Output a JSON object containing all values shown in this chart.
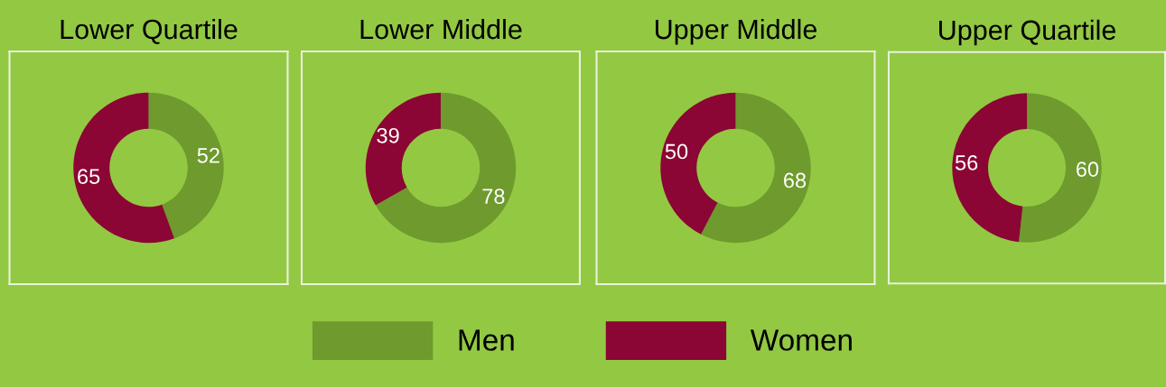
{
  "chart_data": [
    {
      "type": "donut",
      "title": "Lower Quartile",
      "categories": [
        "Men",
        "Women"
      ],
      "values": [
        52,
        65
      ],
      "colors": [
        "#6e9a2e",
        "#8b0634"
      ],
      "data_labels": true,
      "legend": "bottom"
    },
    {
      "type": "donut",
      "title": "Lower Middle",
      "categories": [
        null,
        null
      ],
      "values": [
        78,
        39
      ],
      "colors": [
        "#6e9a2e",
        "#8b0634"
      ],
      "data_labels": true
    },
    {
      "type": "donut",
      "title": "Upper Middle",
      "categories": [
        null,
        null
      ],
      "values": [
        68,
        50
      ],
      "colors": [
        "#6e9a2e",
        "#8b0634"
      ],
      "data_labels": true
    },
    {
      "type": "donut",
      "title": "Upper Quartile",
      "categories": [
        null,
        null
      ],
      "values": [
        60,
        56
      ],
      "colors": [
        "#6e9a2e",
        "#8b0634"
      ],
      "data_labels": true
    }
  ]
}
